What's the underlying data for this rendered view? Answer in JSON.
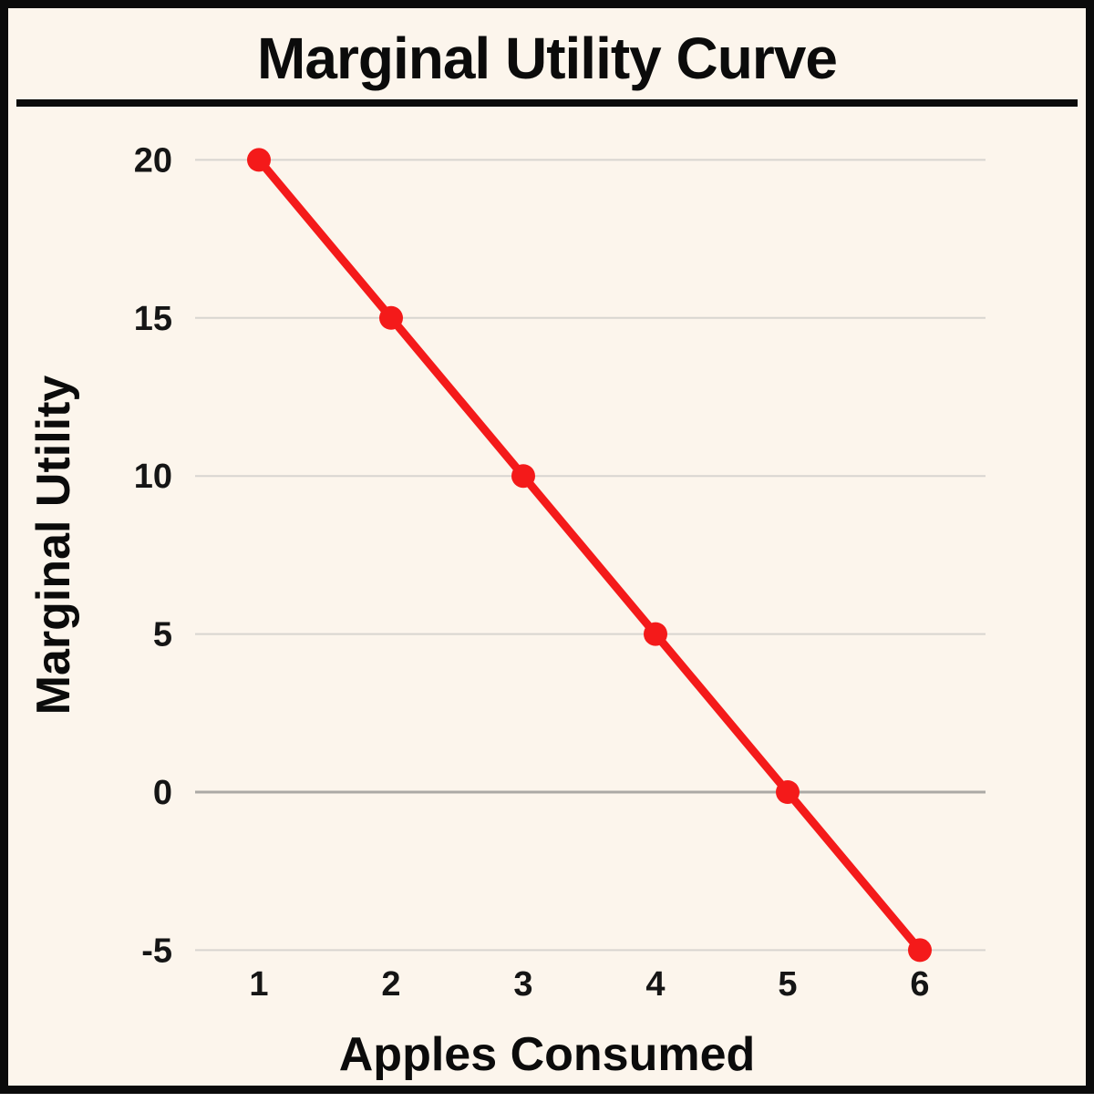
{
  "title": "Marginal Utility Curve",
  "colors": {
    "background": "#FCF5EC",
    "border": "#0B0B0B",
    "line": "#F41A1A",
    "gridline": "#D8D5D0",
    "zero_gridline": "#ABA9A5",
    "text": "#151515"
  },
  "chart_data": {
    "type": "line",
    "title": "Marginal Utility Curve",
    "xlabel": "Apples Consumed",
    "ylabel": "Marginal Utility",
    "x": [
      1,
      2,
      3,
      4,
      5,
      6
    ],
    "values": [
      20,
      15,
      10,
      5,
      0,
      -5
    ],
    "x_ticks": [
      "1",
      "2",
      "3",
      "4",
      "5",
      "6"
    ],
    "y_ticks": [
      20,
      15,
      10,
      5,
      0,
      -5
    ],
    "xlim": [
      1,
      6
    ],
    "ylim": [
      -5,
      20
    ],
    "grid": "horizontal",
    "legend": "none",
    "marker": "circle",
    "series_color": "#F41A1A"
  }
}
